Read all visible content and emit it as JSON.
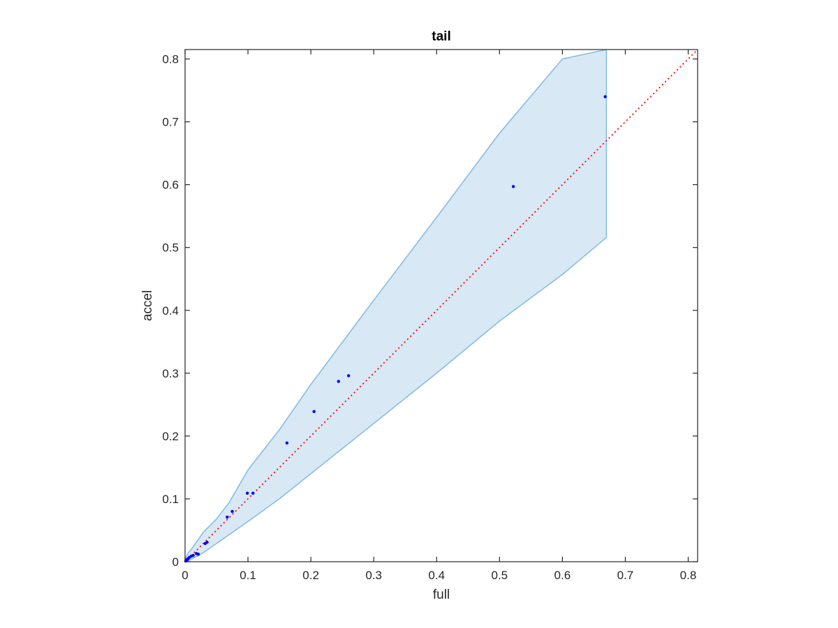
{
  "chart_data": {
    "type": "scatter",
    "title": "tail",
    "xlabel": "full",
    "ylabel": "accel",
    "xlim": [
      0,
      0.815
    ],
    "ylim": [
      0,
      0.815
    ],
    "grid": false,
    "legend": "none",
    "xticks": [
      0,
      0.1,
      0.2,
      0.3,
      0.4,
      0.5,
      0.6,
      0.7,
      0.8
    ],
    "yticks": [
      0,
      0.1,
      0.2,
      0.3,
      0.4,
      0.5,
      0.6,
      0.7,
      0.8
    ],
    "tick_labels": [
      "0",
      "0.1",
      "0.2",
      "0.3",
      "0.4",
      "0.5",
      "0.6",
      "0.7",
      "0.8"
    ],
    "colors": {
      "points": "#0000ff",
      "reference_line": "#ff0000",
      "band_fill": "#d8e8f4",
      "band_edge": "#86bde2",
      "axes": "#262626"
    },
    "series": [
      {
        "style": "points",
        "x": [
          0.001,
          0.002,
          0.003,
          0.004,
          0.005,
          0.007,
          0.01,
          0.013,
          0.018,
          0.021,
          0.032,
          0.035,
          0.067,
          0.075,
          0.099,
          0.108,
          0.162,
          0.205,
          0.244,
          0.26,
          0.522,
          0.668
        ],
        "y": [
          0.001,
          0.003,
          0.002,
          0.004,
          0.005,
          0.007,
          0.009,
          0.01,
          0.013,
          0.012,
          0.029,
          0.031,
          0.071,
          0.08,
          0.109,
          0.109,
          0.189,
          0.239,
          0.287,
          0.296,
          0.597,
          0.74
        ]
      },
      {
        "style": "reference-line",
        "x": [
          0,
          0.815
        ],
        "y": [
          0,
          0.815
        ]
      },
      {
        "style": "band",
        "x": [
          0,
          0.002,
          0.005,
          0.01,
          0.02,
          0.03,
          0.05,
          0.07,
          0.1,
          0.15,
          0.2,
          0.3,
          0.4,
          0.5,
          0.6,
          0.67
        ],
        "upper": [
          0,
          0.008,
          0.014,
          0.02,
          0.034,
          0.048,
          0.068,
          0.094,
          0.146,
          0.21,
          0.282,
          0.416,
          0.548,
          0.682,
          0.8,
          0.83
        ],
        "lower": [
          0,
          0.001,
          0.002,
          0.004,
          0.009,
          0.015,
          0.029,
          0.043,
          0.064,
          0.1,
          0.14,
          0.22,
          0.3,
          0.383,
          0.457,
          0.516
        ]
      }
    ]
  }
}
